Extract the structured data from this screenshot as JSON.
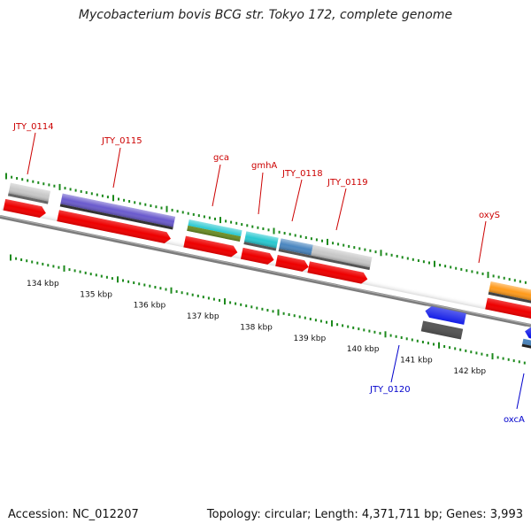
{
  "title": "Mycobacterium bovis BCG str. Tokyo 172, complete genome",
  "footer": {
    "accession": "Accession: NC_012207",
    "summary": "Topology: circular; Length: 4,371,711 bp; Genes: 3,993"
  },
  "colors": {
    "backbone": "#7c7c7c",
    "tick": "#1d8a1d",
    "forward_label": "#cc0000",
    "reverse_label": "#0000cc",
    "cds_red": "#ee0000",
    "gene_grey": "#c8c8c8",
    "gene_purple": "#6a5acd",
    "gene_cyan": "#28c8d0",
    "gene_olive": "#6b8e23",
    "gene_steel": "#4a86c0",
    "gene_orange": "#ff9a1a",
    "gene_blue": "#0a14e6",
    "gene_dark_grey": "#555555"
  },
  "scale_labels": [
    "134 kbp",
    "135 kbp",
    "136 kbp",
    "137 kbp",
    "138 kbp",
    "139 kbp",
    "140 kbp",
    "141 kbp",
    "142 kbp"
  ],
  "gene_labels": {
    "jty_0114": "JTY_0114",
    "jty_0115": "JTY_0115",
    "gca": "gca",
    "gmha": "gmhA",
    "jty_0118": "JTY_0118",
    "jty_0119": "JTY_0119",
    "oxys": "oxyS",
    "jty_0120": "JTY_0120",
    "oxca": "oxcA"
  }
}
